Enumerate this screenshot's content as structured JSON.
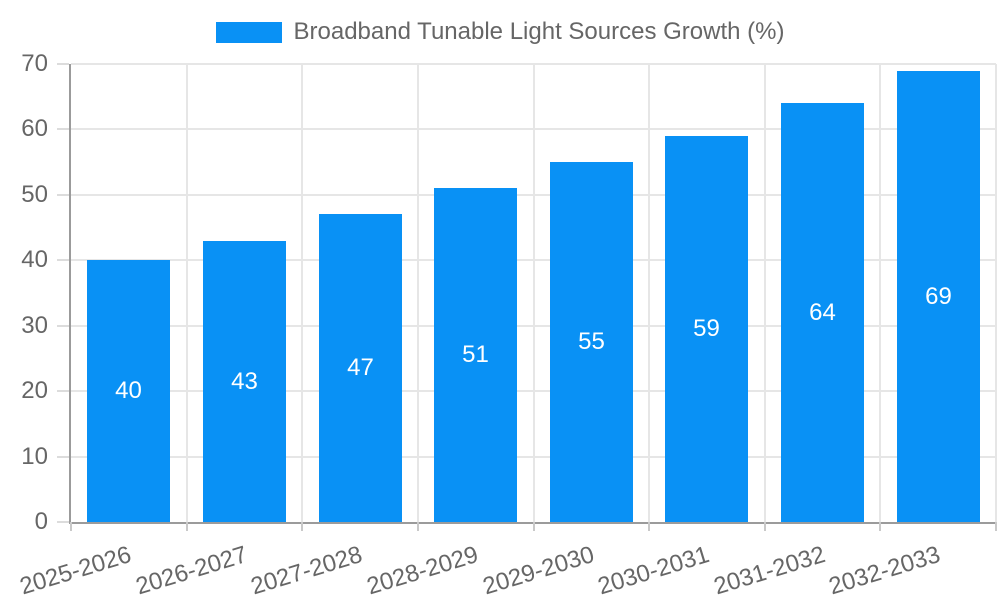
{
  "legend": {
    "items": [
      {
        "label": "Broadband Tunable Light Sources Growth (%)",
        "color": "#0991f5"
      }
    ]
  },
  "chart_data": {
    "type": "bar",
    "title": "Broadband Tunable Light Sources Growth (%)",
    "categories": [
      "2025-2026",
      "2026-2027",
      "2027-2028",
      "2028-2029",
      "2029-2030",
      "2030-2031",
      "2031-2032",
      "2032-2033"
    ],
    "values": [
      40,
      43,
      47,
      51,
      55,
      59,
      64,
      69
    ],
    "xlabel": "",
    "ylabel": "",
    "ylim": [
      0,
      70
    ],
    "yticks": [
      0,
      10,
      20,
      30,
      40,
      50,
      60,
      70
    ],
    "grid": true,
    "legend_position": "top",
    "bar_labels_inside": true,
    "colors": {
      "bar": "#0991f5",
      "bar_value_text": "#ffffff",
      "axis_text": "#666666",
      "gridline": "#e6e6e6",
      "axis_line": "#9b9b9b",
      "background": "#ffffff"
    }
  }
}
